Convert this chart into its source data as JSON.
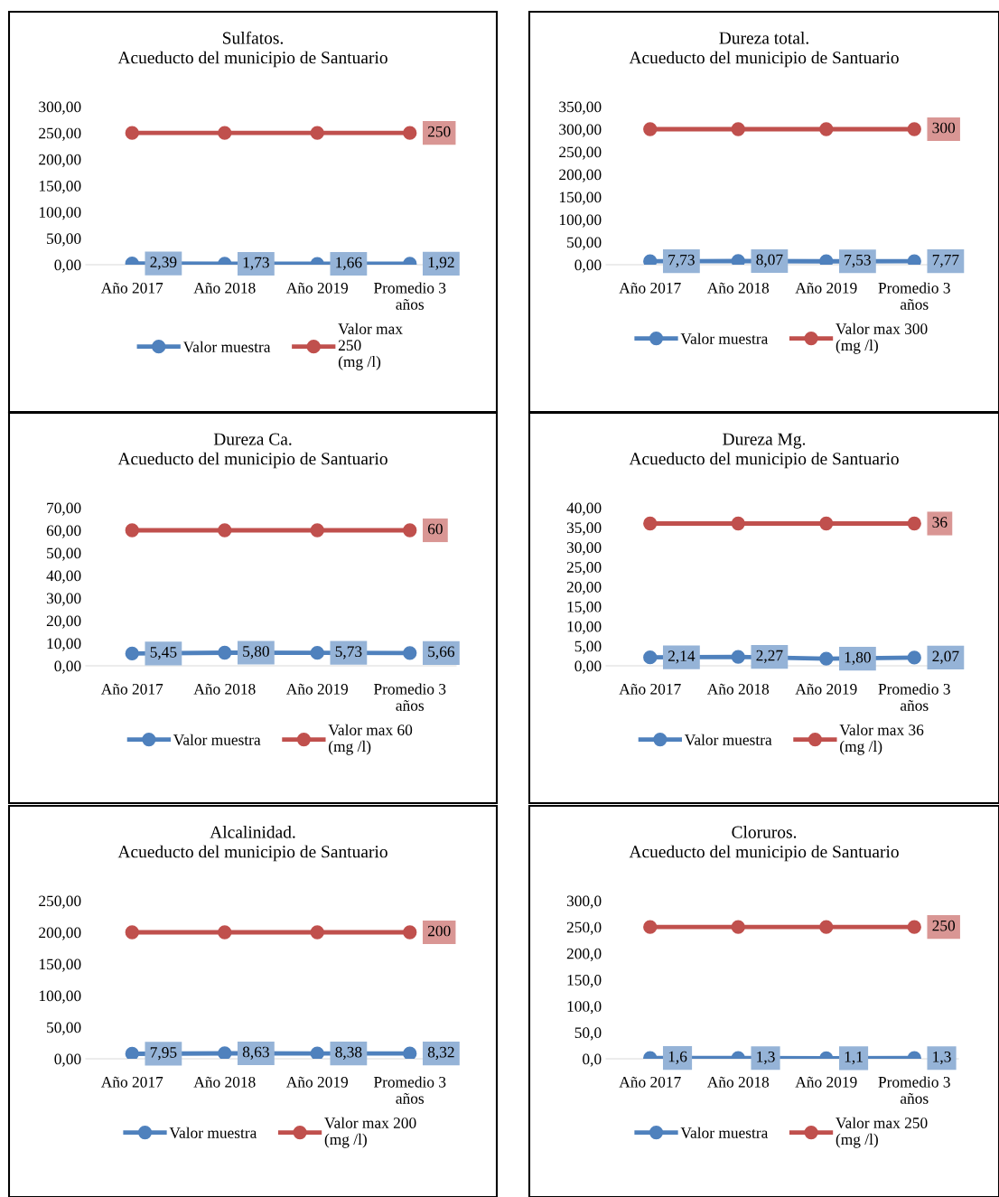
{
  "chart_data": [
    {
      "type": "line",
      "title": "Sulfatos.\nAcueducto del municipio de Santuario",
      "categories": [
        "Año 2017",
        "Año 2018",
        "Año 2019",
        "Promedio 3\naños"
      ],
      "series": [
        {
          "name": "Valor muestra",
          "color": "#4f81bd",
          "values": [
            2.39,
            1.73,
            1.66,
            1.92
          ],
          "value_labels": [
            "2,39",
            "1,73",
            "1,66",
            "1,92"
          ]
        },
        {
          "name": "Valor max\n250\n(mg /l)",
          "color": "#c0504d",
          "values": [
            250,
            250,
            250,
            250
          ],
          "value_labels": [
            null,
            null,
            null,
            "250"
          ]
        }
      ],
      "ylim": [
        0,
        300
      ],
      "yticks": [
        {
          "value": 0,
          "label": "0,00"
        },
        {
          "value": 50,
          "label": "50,00"
        },
        {
          "value": 100,
          "label": "100,00"
        },
        {
          "value": 150,
          "label": "150,00"
        },
        {
          "value": 200,
          "label": "200,00"
        },
        {
          "value": 250,
          "label": "250,00"
        },
        {
          "value": 300,
          "label": "300,00"
        }
      ],
      "legend": "bottom",
      "marker": "circle",
      "grid": false
    },
    {
      "type": "line",
      "title": "Dureza total.\nAcueducto del municipio de Santuario",
      "categories": [
        "Año 2017",
        "Año 2018",
        "Año 2019",
        "Promedio 3\naños"
      ],
      "series": [
        {
          "name": "Valor muestra",
          "color": "#4f81bd",
          "values": [
            7.73,
            8.07,
            7.53,
            7.77
          ],
          "value_labels": [
            "7,73",
            "8,07",
            "7,53",
            "7,77"
          ]
        },
        {
          "name": "Valor max 300\n(mg /l)",
          "color": "#c0504d",
          "values": [
            300,
            300,
            300,
            300
          ],
          "value_labels": [
            null,
            null,
            null,
            "300"
          ]
        }
      ],
      "ylim": [
        0,
        350
      ],
      "yticks": [
        {
          "value": 0,
          "label": "0,00"
        },
        {
          "value": 50,
          "label": "50,00"
        },
        {
          "value": 100,
          "label": "100,00"
        },
        {
          "value": 150,
          "label": "150,00"
        },
        {
          "value": 200,
          "label": "200,00"
        },
        {
          "value": 250,
          "label": "250,00"
        },
        {
          "value": 300,
          "label": "300,00"
        },
        {
          "value": 350,
          "label": "350,00"
        }
      ],
      "legend": "bottom",
      "marker": "circle",
      "grid": false
    },
    {
      "type": "line",
      "title": "Dureza Ca.\nAcueducto del municipio de Santuario",
      "categories": [
        "Año 2017",
        "Año 2018",
        "Año 2019",
        "Promedio 3\naños"
      ],
      "series": [
        {
          "name": "Valor muestra",
          "color": "#4f81bd",
          "values": [
            5.45,
            5.8,
            5.73,
            5.66
          ],
          "value_labels": [
            "5,45",
            "5,80",
            "5,73",
            "5,66"
          ]
        },
        {
          "name": "Valor max 60\n(mg /l)",
          "color": "#c0504d",
          "values": [
            60,
            60,
            60,
            60
          ],
          "value_labels": [
            null,
            null,
            null,
            "60"
          ]
        }
      ],
      "ylim": [
        0,
        70
      ],
      "yticks": [
        {
          "value": 0,
          "label": "0,00"
        },
        {
          "value": 10,
          "label": "10,00"
        },
        {
          "value": 20,
          "label": "20,00"
        },
        {
          "value": 30,
          "label": "30,00"
        },
        {
          "value": 40,
          "label": "40,00"
        },
        {
          "value": 50,
          "label": "50,00"
        },
        {
          "value": 60,
          "label": "60,00"
        },
        {
          "value": 70,
          "label": "70,00"
        }
      ],
      "legend": "bottom",
      "marker": "circle",
      "grid": false
    },
    {
      "type": "line",
      "title": "Dureza Mg.\nAcueducto del municipio de Santuario",
      "categories": [
        "Año 2017",
        "Año 2018",
        "Año 2019",
        "Promedio 3\naños"
      ],
      "series": [
        {
          "name": "Valor muestra",
          "color": "#4f81bd",
          "values": [
            2.14,
            2.27,
            1.8,
            2.07
          ],
          "value_labels": [
            "2,14",
            "2,27",
            "1,80",
            "2,07"
          ]
        },
        {
          "name": "Valor max 36\n(mg /l)",
          "color": "#c0504d",
          "values": [
            36,
            36,
            36,
            36
          ],
          "value_labels": [
            null,
            null,
            null,
            "36"
          ]
        }
      ],
      "ylim": [
        0,
        40
      ],
      "yticks": [
        {
          "value": 0,
          "label": "0,00"
        },
        {
          "value": 5,
          "label": "5,00"
        },
        {
          "value": 10,
          "label": "10,00"
        },
        {
          "value": 15,
          "label": "15,00"
        },
        {
          "value": 20,
          "label": "20,00"
        },
        {
          "value": 25,
          "label": "25,00"
        },
        {
          "value": 30,
          "label": "30,00"
        },
        {
          "value": 35,
          "label": "35,00"
        },
        {
          "value": 40,
          "label": "40,00"
        }
      ],
      "legend": "bottom",
      "marker": "circle",
      "grid": false
    },
    {
      "type": "line",
      "title": "Alcalinidad.\nAcueducto del municipio de Santuario",
      "categories": [
        "Año 2017",
        "Año 2018",
        "Año 2019",
        "Promedio 3\naños"
      ],
      "series": [
        {
          "name": "Valor muestra",
          "color": "#4f81bd",
          "values": [
            7.95,
            8.63,
            8.38,
            8.32
          ],
          "value_labels": [
            "7,95",
            "8,63",
            "8,38",
            "8,32"
          ]
        },
        {
          "name": "Valor max 200\n(mg /l)",
          "color": "#c0504d",
          "values": [
            200,
            200,
            200,
            200
          ],
          "value_labels": [
            null,
            null,
            null,
            "200"
          ]
        }
      ],
      "ylim": [
        0,
        250
      ],
      "yticks": [
        {
          "value": 0,
          "label": "0,00"
        },
        {
          "value": 50,
          "label": "50,00"
        },
        {
          "value": 100,
          "label": "100,00"
        },
        {
          "value": 150,
          "label": "150,00"
        },
        {
          "value": 200,
          "label": "200,00"
        },
        {
          "value": 250,
          "label": "250,00"
        }
      ],
      "legend": "bottom",
      "marker": "circle",
      "grid": false
    },
    {
      "type": "line",
      "title": "Cloruros.\nAcueducto del municipio de Santuario",
      "categories": [
        "Año 2017",
        "Año 2018",
        "Año 2019",
        "Promedio 3\naños"
      ],
      "series": [
        {
          "name": "Valor muestra",
          "color": "#4f81bd",
          "values": [
            1.6,
            1.3,
            1.1,
            1.3
          ],
          "value_labels": [
            "1,6",
            "1,3",
            "1,1",
            "1,3"
          ]
        },
        {
          "name": "Valor max 250\n(mg /l)",
          "color": "#c0504d",
          "values": [
            250,
            250,
            250,
            250
          ],
          "value_labels": [
            null,
            null,
            null,
            "250"
          ]
        }
      ],
      "ylim": [
        0,
        300
      ],
      "yticks": [
        {
          "value": 0,
          "label": "0,0"
        },
        {
          "value": 50,
          "label": "50,0"
        },
        {
          "value": 100,
          "label": "100,0"
        },
        {
          "value": 150,
          "label": "150,0"
        },
        {
          "value": 200,
          "label": "200,0"
        },
        {
          "value": 250,
          "label": "250,0"
        },
        {
          "value": 300,
          "label": "300,0"
        }
      ],
      "legend": "bottom",
      "marker": "circle",
      "grid": false
    }
  ]
}
